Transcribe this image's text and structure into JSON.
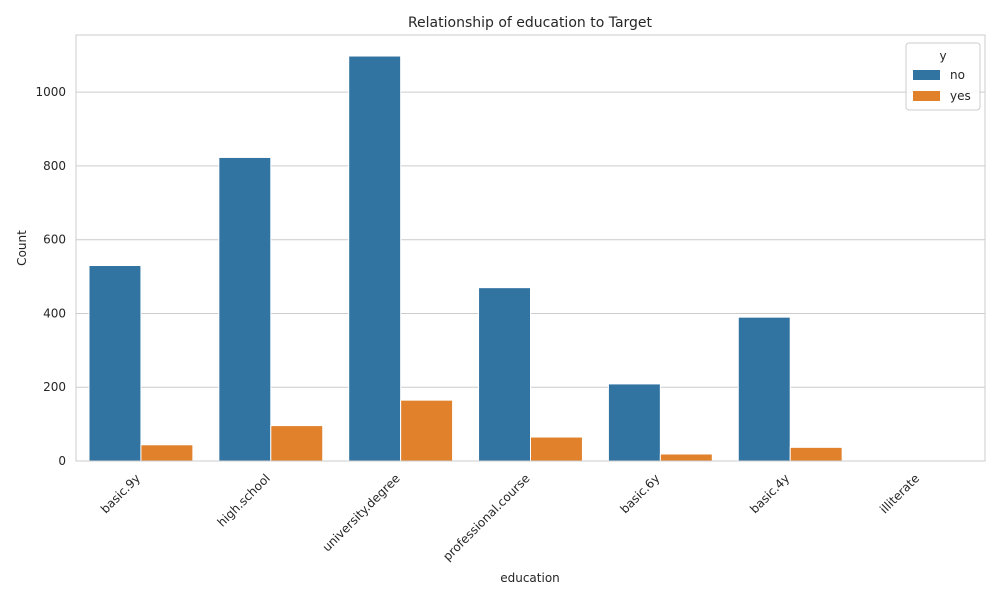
{
  "chart_data": {
    "type": "bar",
    "title": "Relationship of education to Target",
    "xlabel": "education",
    "ylabel": "Count",
    "categories": [
      "basic.9y",
      "high.school",
      "university.degree",
      "professional.course",
      "basic.6y",
      "basic.4y",
      "illiterate"
    ],
    "series": [
      {
        "name": "no",
        "color": "#3274a1",
        "values": [
          530,
          823,
          1098,
          470,
          209,
          390,
          1
        ]
      },
      {
        "name": "yes",
        "color": "#e1812c",
        "values": [
          44,
          96,
          165,
          65,
          19,
          37,
          0
        ]
      }
    ],
    "ylim": [
      0,
      1155
    ],
    "yticks": [
      0,
      200,
      400,
      600,
      800,
      1000
    ],
    "legend": {
      "title": "y",
      "position": "top-right"
    },
    "grid": true
  }
}
